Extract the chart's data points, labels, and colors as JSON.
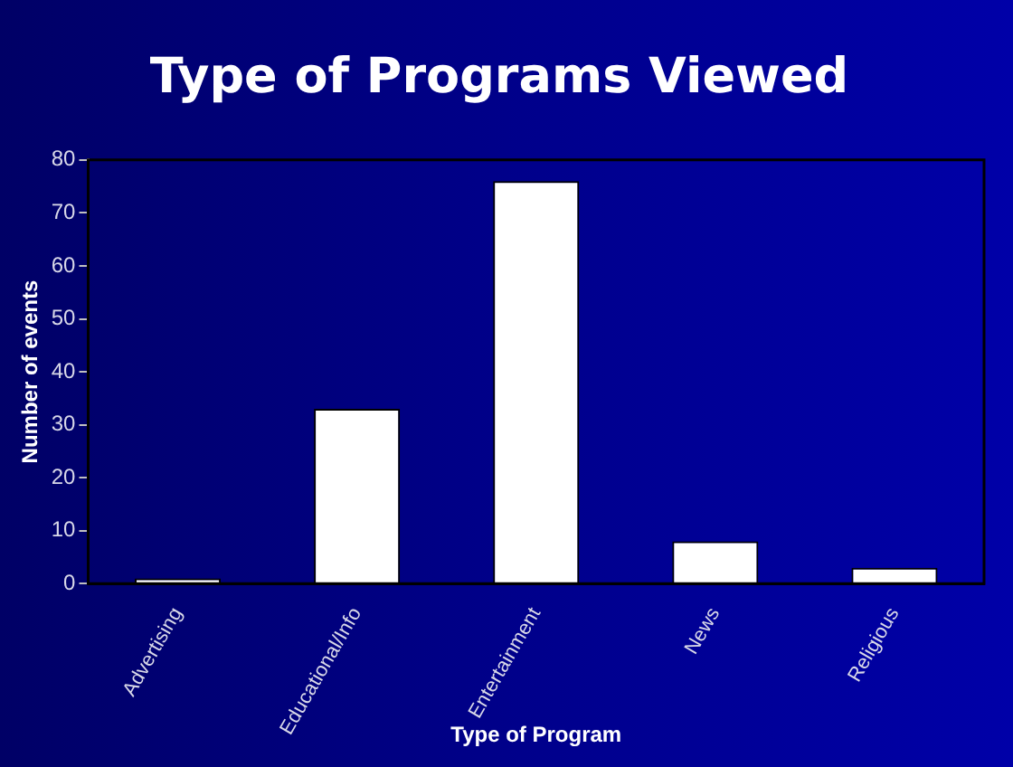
{
  "chart_data": {
    "type": "bar",
    "title": "Type of Programs Viewed",
    "xlabel": "Type of Program",
    "ylabel": "Number of events",
    "categories": [
      "Advertising",
      "Educational/Info",
      "Entertainment",
      "News",
      "Religious"
    ],
    "values": [
      1,
      33,
      76,
      8,
      3
    ],
    "color": "#ffffff",
    "ylim": [
      0,
      80
    ],
    "yticks": [
      0,
      10,
      20,
      30,
      40,
      50,
      60,
      70,
      80
    ],
    "grid": false,
    "legend": false
  }
}
